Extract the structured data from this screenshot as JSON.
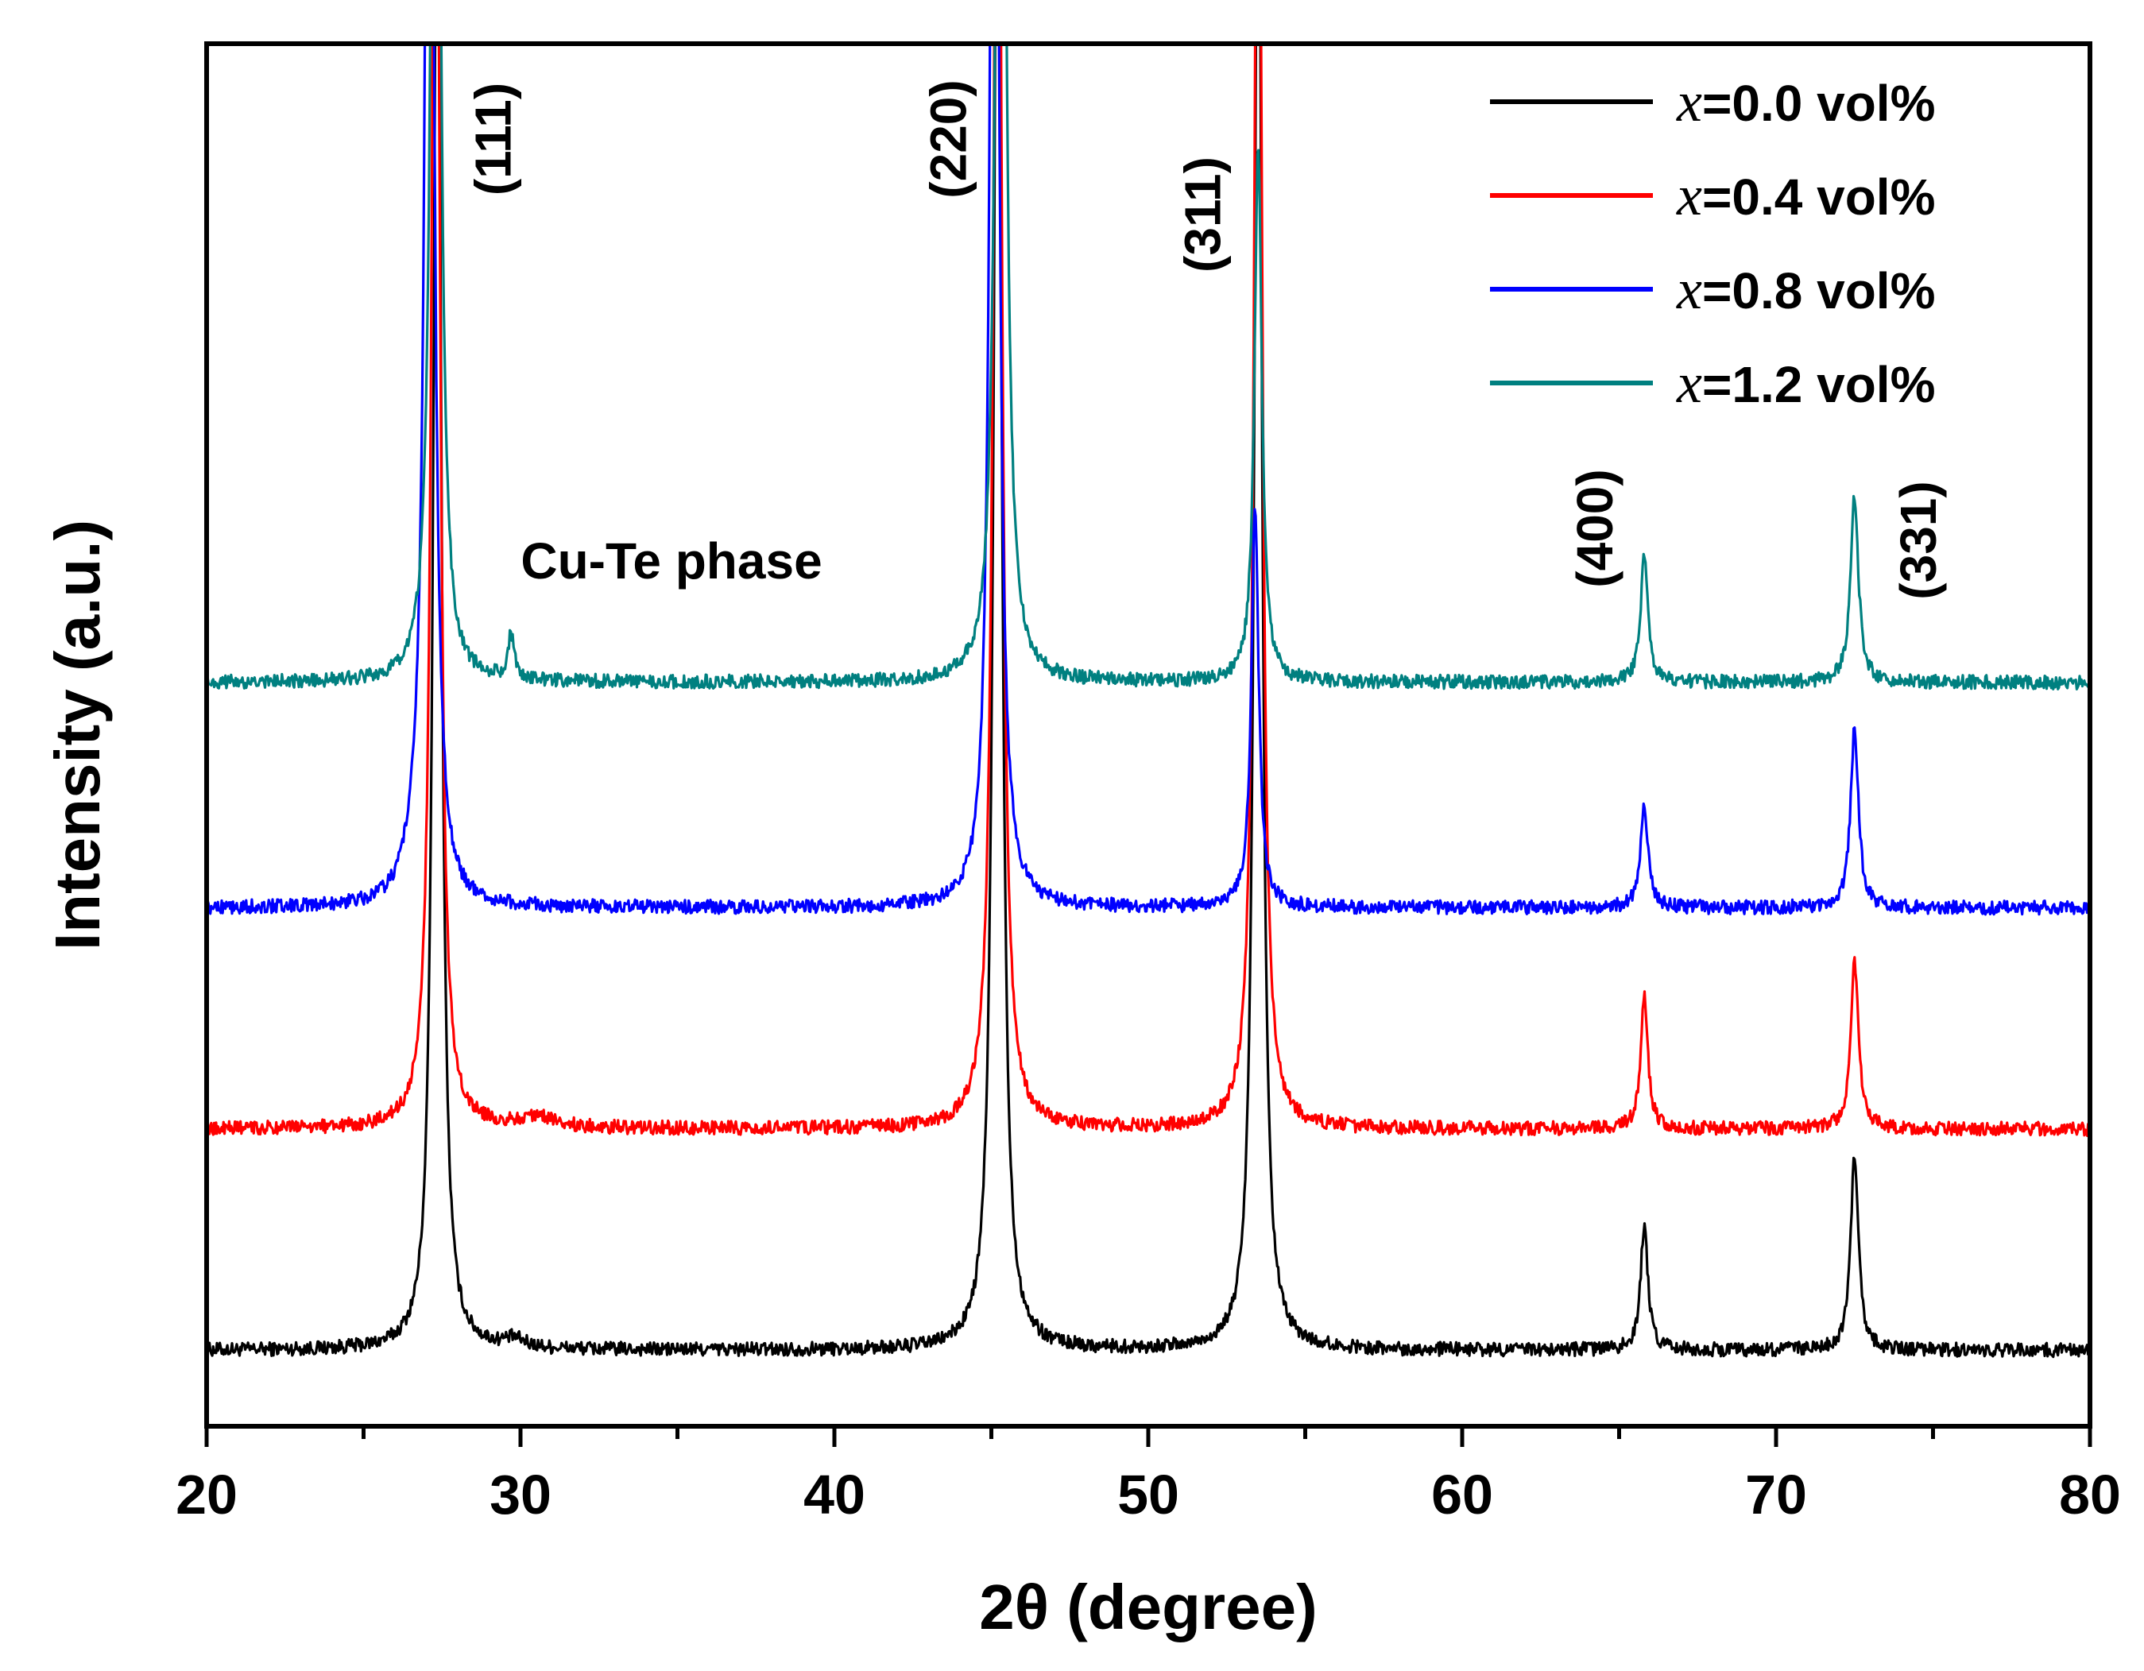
{
  "chart_data": {
    "type": "line",
    "title": "",
    "xlabel": "2θ (degree)",
    "ylabel": "Intensity (a.u.)",
    "xlim": [
      20,
      80
    ],
    "ylim": [
      0,
      100
    ],
    "x_ticks": [
      "20",
      "30",
      "40",
      "50",
      "60",
      "70",
      "80"
    ],
    "y_ticks": [],
    "grid": false,
    "legend_position": "top-right",
    "peaks": [
      {
        "label": "(111)",
        "x": 27.3
      },
      {
        "label": "(220)",
        "x": 45.2
      },
      {
        "label": "(311)",
        "x": 53.5
      },
      {
        "label": "(400)",
        "x": 65.8
      },
      {
        "label": "(331)",
        "x": 72.5
      }
    ],
    "annotations": [
      {
        "text": "Cu-Te phase",
        "x": 29.7
      }
    ],
    "series": [
      {
        "name": "x=0.0 vol%",
        "prefix": "x",
        "suffix": "=0.0 vol%",
        "color": "#000000",
        "baseline": 5.5,
        "peaks": [
          [
            27.35,
            120,
            0.14
          ],
          [
            45.2,
            120,
            0.15
          ],
          [
            53.5,
            120,
            0.14
          ],
          [
            65.8,
            9,
            0.14
          ],
          [
            72.5,
            14,
            0.15
          ],
          [
            29.8,
            0.6,
            0.4
          ]
        ]
      },
      {
        "name": "x=0.4 vol%",
        "prefix": "x",
        "suffix": "=0.4 vol%",
        "color": "#ff0000",
        "baseline": 21.5,
        "peaks": [
          [
            27.3,
            120,
            0.14
          ],
          [
            45.2,
            120,
            0.15
          ],
          [
            53.5,
            115,
            0.14
          ],
          [
            65.8,
            9.5,
            0.14
          ],
          [
            72.5,
            12,
            0.15
          ],
          [
            30.5,
            0.8,
            0.7
          ]
        ]
      },
      {
        "name": "x=0.8 vol%",
        "prefix": "x",
        "suffix": "=0.8 vol%",
        "color": "#0000ff",
        "baseline": 37.5,
        "peaks": [
          [
            27.1,
            120,
            0.15
          ],
          [
            26.6,
            2.5,
            0.35
          ],
          [
            45.1,
            120,
            0.15
          ],
          [
            53.4,
            29,
            0.14
          ],
          [
            65.8,
            7.5,
            0.14
          ],
          [
            72.5,
            13,
            0.15
          ]
        ]
      },
      {
        "name": "x=1.2 vol%",
        "prefix": "x",
        "suffix": "=1.2 vol%",
        "color": "#008080",
        "baseline": 53.8,
        "peaks": [
          [
            27.3,
            120,
            0.14
          ],
          [
            45.3,
            120,
            0.15
          ],
          [
            53.5,
            39,
            0.14
          ],
          [
            29.7,
            3.2,
            0.12
          ],
          [
            65.8,
            9,
            0.14
          ],
          [
            72.5,
            13.5,
            0.15
          ]
        ]
      }
    ]
  }
}
